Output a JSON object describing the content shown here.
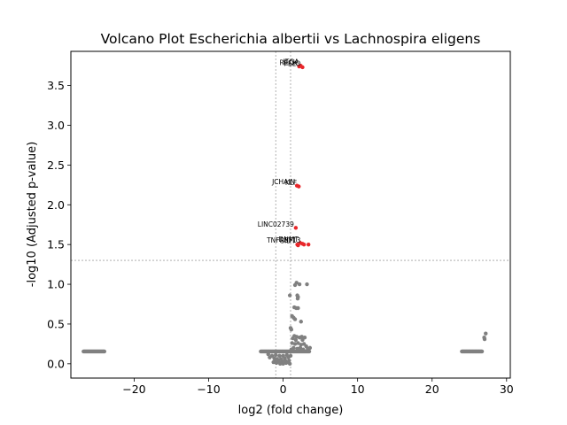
{
  "chart_data": {
    "type": "scatter",
    "title": "Volcano Plot Escherichia albertii vs Lachnospira eligens",
    "xlabel": "log2 (fold change)",
    "ylabel": "-log10 (Adjusted p-value)",
    "xlim": [
      -28.5,
      30.5
    ],
    "ylim": [
      -0.18,
      3.93
    ],
    "xticks": [
      -20,
      -10,
      0,
      10,
      20,
      30
    ],
    "yticks": [
      0.0,
      0.5,
      1.0,
      1.5,
      2.0,
      2.5,
      3.0,
      3.5
    ],
    "xtick_labels": [
      "−20",
      "−10",
      "0",
      "10",
      "20",
      "30"
    ],
    "ytick_labels": [
      "0.0",
      "0.5",
      "1.0",
      "1.5",
      "2.0",
      "2.5",
      "3.0",
      "3.5"
    ],
    "threshold_lines": {
      "x": [
        -1,
        1
      ],
      "y": 1.301
    },
    "grid": false,
    "colors": {
      "significant": "#e8262a",
      "nonsignificant": "#808080",
      "threshold": "#808080"
    },
    "significant_points": [
      {
        "x": 2.35,
        "y": 3.75,
        "label": "ITGA"
      },
      {
        "x": 2.6,
        "y": 3.73,
        "label": "PELO"
      },
      {
        "x": 2.15,
        "y": 3.74,
        "label": "RECK"
      },
      {
        "x": 1.85,
        "y": 2.24,
        "label": "JCHAIN"
      },
      {
        "x": 2.1,
        "y": 2.23,
        "label": "KLF"
      },
      {
        "x": 1.7,
        "y": 1.71,
        "label": "LINC02739"
      },
      {
        "x": 1.9,
        "y": 1.5,
        "label": "SIDT"
      },
      {
        "x": 2.3,
        "y": 1.52,
        "label": "DNMT"
      },
      {
        "x": 2.6,
        "y": 1.51,
        "label": "TNFRSF13"
      },
      {
        "x": 3.4,
        "y": 1.5,
        "label": ""
      },
      {
        "x": 2.0,
        "y": 1.49,
        "label": ""
      },
      {
        "x": 2.8,
        "y": 1.5,
        "label": ""
      }
    ],
    "nonsignificant_clusters": [
      {
        "x_range": [
          -26.8,
          -24.0
        ],
        "y": 0.155,
        "n": 30
      },
      {
        "x_range": [
          24.0,
          26.7
        ],
        "y": 0.155,
        "n": 30
      },
      {
        "x_range": [
          -3.0,
          3.5
        ],
        "y": 0.155,
        "n": 60
      }
    ],
    "nonsignificant_points": [
      [
        27.2,
        0.38
      ],
      [
        27.0,
        0.33
      ],
      [
        27.05,
        0.31
      ],
      [
        1.8,
        1.02
      ],
      [
        2.2,
        1.0
      ],
      [
        3.2,
        1.0
      ],
      [
        1.6,
        0.99
      ],
      [
        0.9,
        0.86
      ],
      [
        1.9,
        0.86
      ],
      [
        2.0,
        0.84
      ],
      [
        1.95,
        0.82
      ],
      [
        1.5,
        0.71
      ],
      [
        1.75,
        0.7
      ],
      [
        2.0,
        0.7
      ],
      [
        1.2,
        0.6
      ],
      [
        1.4,
        0.58
      ],
      [
        1.6,
        0.56
      ],
      [
        2.4,
        0.53
      ],
      [
        1.0,
        0.45
      ],
      [
        1.1,
        0.43
      ],
      [
        1.5,
        0.35
      ],
      [
        1.8,
        0.34
      ],
      [
        2.2,
        0.33
      ],
      [
        2.5,
        0.34
      ],
      [
        2.9,
        0.33
      ],
      [
        1.3,
        0.32
      ],
      [
        1.7,
        0.3
      ],
      [
        2.6,
        0.3
      ],
      [
        1.2,
        0.26
      ],
      [
        1.6,
        0.25
      ],
      [
        2.0,
        0.26
      ],
      [
        2.4,
        0.24
      ],
      [
        2.8,
        0.25
      ],
      [
        3.1,
        0.22
      ],
      [
        3.6,
        0.2
      ],
      [
        1.4,
        0.2
      ],
      [
        1.9,
        0.19
      ],
      [
        2.3,
        0.2
      ],
      [
        2.7,
        0.18
      ],
      [
        3.3,
        0.19
      ],
      [
        1.1,
        0.18
      ],
      [
        -2.0,
        0.12
      ],
      [
        -1.5,
        0.1
      ],
      [
        -1.0,
        0.11
      ],
      [
        -0.5,
        0.1
      ],
      [
        0.0,
        0.1
      ],
      [
        0.5,
        0.11
      ],
      [
        1.0,
        0.1
      ],
      [
        -1.8,
        0.08
      ],
      [
        -1.2,
        0.07
      ],
      [
        -0.8,
        0.06
      ],
      [
        -0.3,
        0.06
      ],
      [
        0.2,
        0.07
      ],
      [
        0.7,
        0.08
      ],
      [
        -1.1,
        0.04
      ],
      [
        -0.6,
        0.03
      ],
      [
        -0.1,
        0.03
      ],
      [
        0.3,
        0.04
      ],
      [
        0.8,
        0.04
      ],
      [
        -1.3,
        0.02
      ],
      [
        -0.9,
        0.01
      ],
      [
        -0.4,
        0.0
      ],
      [
        0.0,
        0.0
      ],
      [
        0.4,
        0.01
      ],
      [
        0.9,
        0.0
      ],
      [
        0.6,
        0.02
      ],
      [
        -0.2,
        0.01
      ]
    ]
  }
}
